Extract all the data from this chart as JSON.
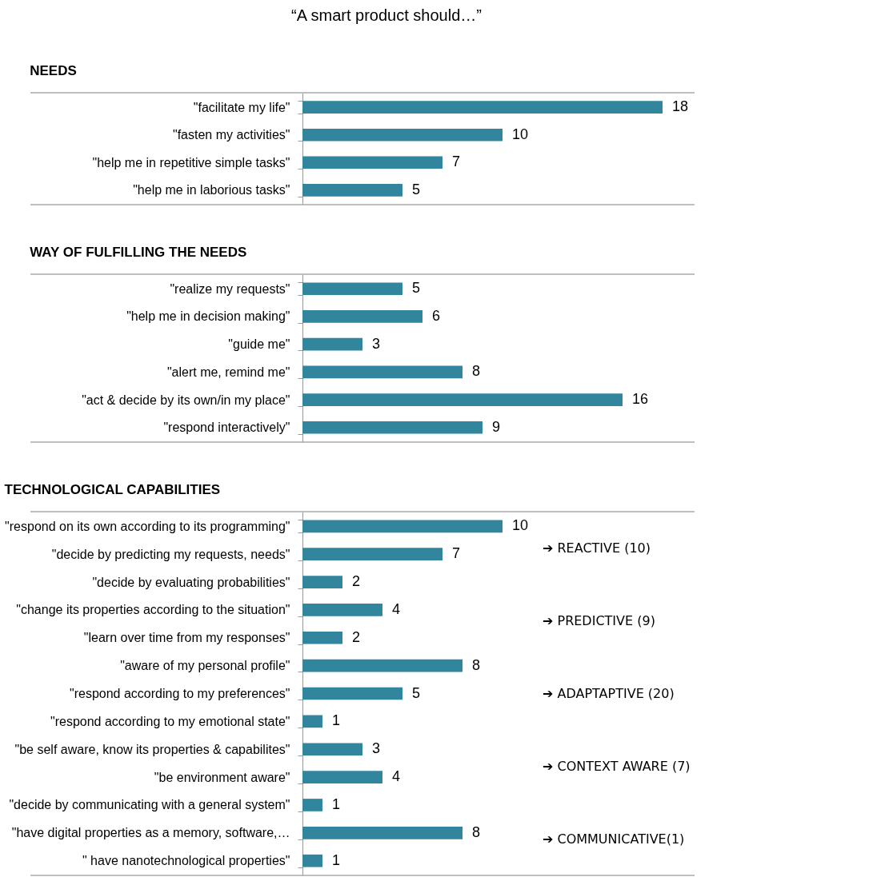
{
  "chart_data": [
    {
      "type": "other",
      "title": "“A smart product should…”"
    },
    {
      "type": "bar",
      "orientation": "horizontal",
      "title": "NEEDS",
      "categories": [
        "\"facilitate my life\"",
        "\"fasten my activities\"",
        "\"help me in repetitive simple tasks\"",
        "\"help me in laborious tasks\""
      ],
      "values": [
        18,
        10,
        7,
        5
      ],
      "color": "#31859c",
      "tick_labels": "y",
      "data_labels": true
    },
    {
      "type": "bar",
      "orientation": "horizontal",
      "title": "WAY OF FULFILLING THE NEEDS",
      "categories": [
        "\"realize my requests\"",
        "\"help me in decision making\"",
        "\"guide me\"",
        "\"alert me, remind me\"",
        "\"act & decide by its own/in my place\"",
        "\"respond interactively\""
      ],
      "values": [
        5,
        6,
        3,
        8,
        16,
        9
      ],
      "color": "#31859c",
      "tick_labels": "y",
      "data_labels": true
    },
    {
      "type": "bar",
      "orientation": "horizontal",
      "title": "TECHNOLOGICAL CAPABILITIES",
      "categories": [
        "\"respond on its own according to its programming\"",
        "\"decide by predicting my requests, needs\"",
        "\"decide by evaluating probabilities\"",
        "\"change its properties according to the situation\"",
        "\"learn over time from my responses\"",
        "\"aware of my personal profile\"",
        "\"respond according to my preferences\"",
        "\"respond according to my emotional state\"",
        "\"be self aware, know its properties & capabilites\"",
        "\"be environment aware\"",
        "\"decide by communicating with a general system\"",
        "\"have digital properties as a memory, software,…",
        "\" have nanotechnological properties\""
      ],
      "values": [
        10,
        7,
        2,
        4,
        2,
        8,
        5,
        1,
        3,
        4,
        1,
        8,
        1
      ],
      "color": "#31859c",
      "tick_labels": "y",
      "data_labels": true,
      "annotations": [
        "➔ REACTIVE (10)",
        "➔ PREDICTIVE (9)",
        "➔ ADAPTAPTIVE (20)",
        "➔ CONTEXT AWARE (7)",
        "➔ COMMUNICATIVE(1)"
      ]
    }
  ]
}
